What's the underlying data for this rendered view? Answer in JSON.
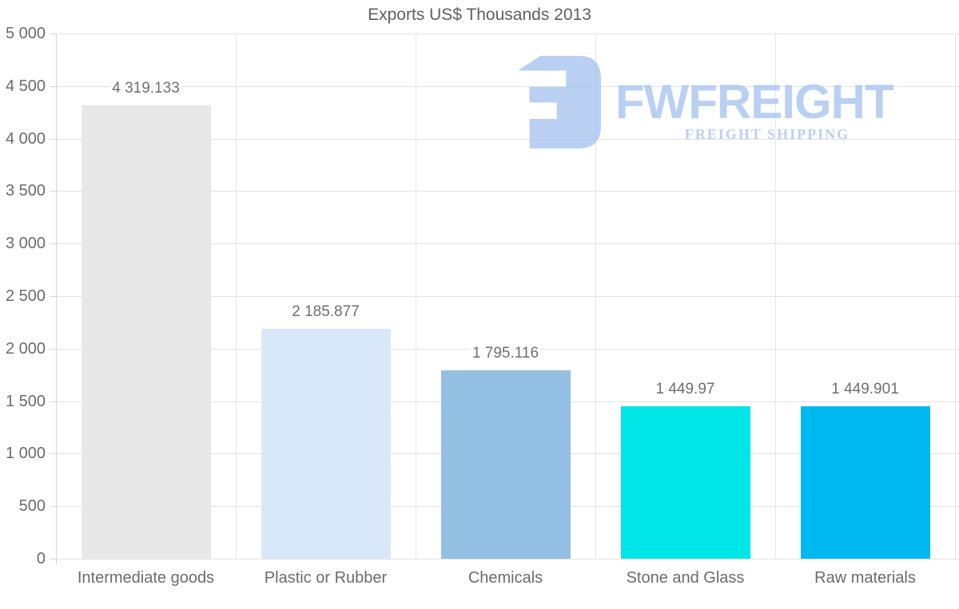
{
  "page": {
    "background": "#ffffff"
  },
  "chart_data": {
    "type": "bar",
    "title": "Exports US$ Thousands 2013",
    "categories": [
      "Intermediate goods",
      "Plastic or Rubber",
      "Chemicals",
      "Stone and Glass",
      "Raw materials"
    ],
    "values": [
      4319.133,
      2185.877,
      1795.116,
      1449.97,
      1449.901
    ],
    "value_labels": [
      "4 319.133",
      "2 185.877",
      "1 795.116",
      "1 449.97",
      "1 449.901"
    ],
    "bar_colors": [
      "#e8e8e8",
      "#d8e8f8",
      "#93bfe3",
      "#00e6e6",
      "#00b9f0"
    ],
    "xlabel": "",
    "ylabel": "",
    "ylim": [
      0,
      5000
    ],
    "ytick_interval": 500,
    "ytick_labels": [
      "0",
      "500",
      "1 000",
      "1 500",
      "2 000",
      "2 500",
      "3 000",
      "3 500",
      "4 000",
      "4 500",
      "5 000"
    ],
    "grid": true,
    "legend": false
  },
  "watermark": {
    "brand": "FWFREIGHT",
    "tagline": "FREIGHT SHIPPING",
    "color": "#a9c5f1"
  },
  "colors": {
    "grid": "#e2e2e2",
    "vertical_grid": "#e7e7e7",
    "axis": "#d6d6d6",
    "text": "#6b6b6b",
    "title": "#5f5f5f",
    "watermark": "#a9c5f1",
    "background": "#ffffff"
  }
}
